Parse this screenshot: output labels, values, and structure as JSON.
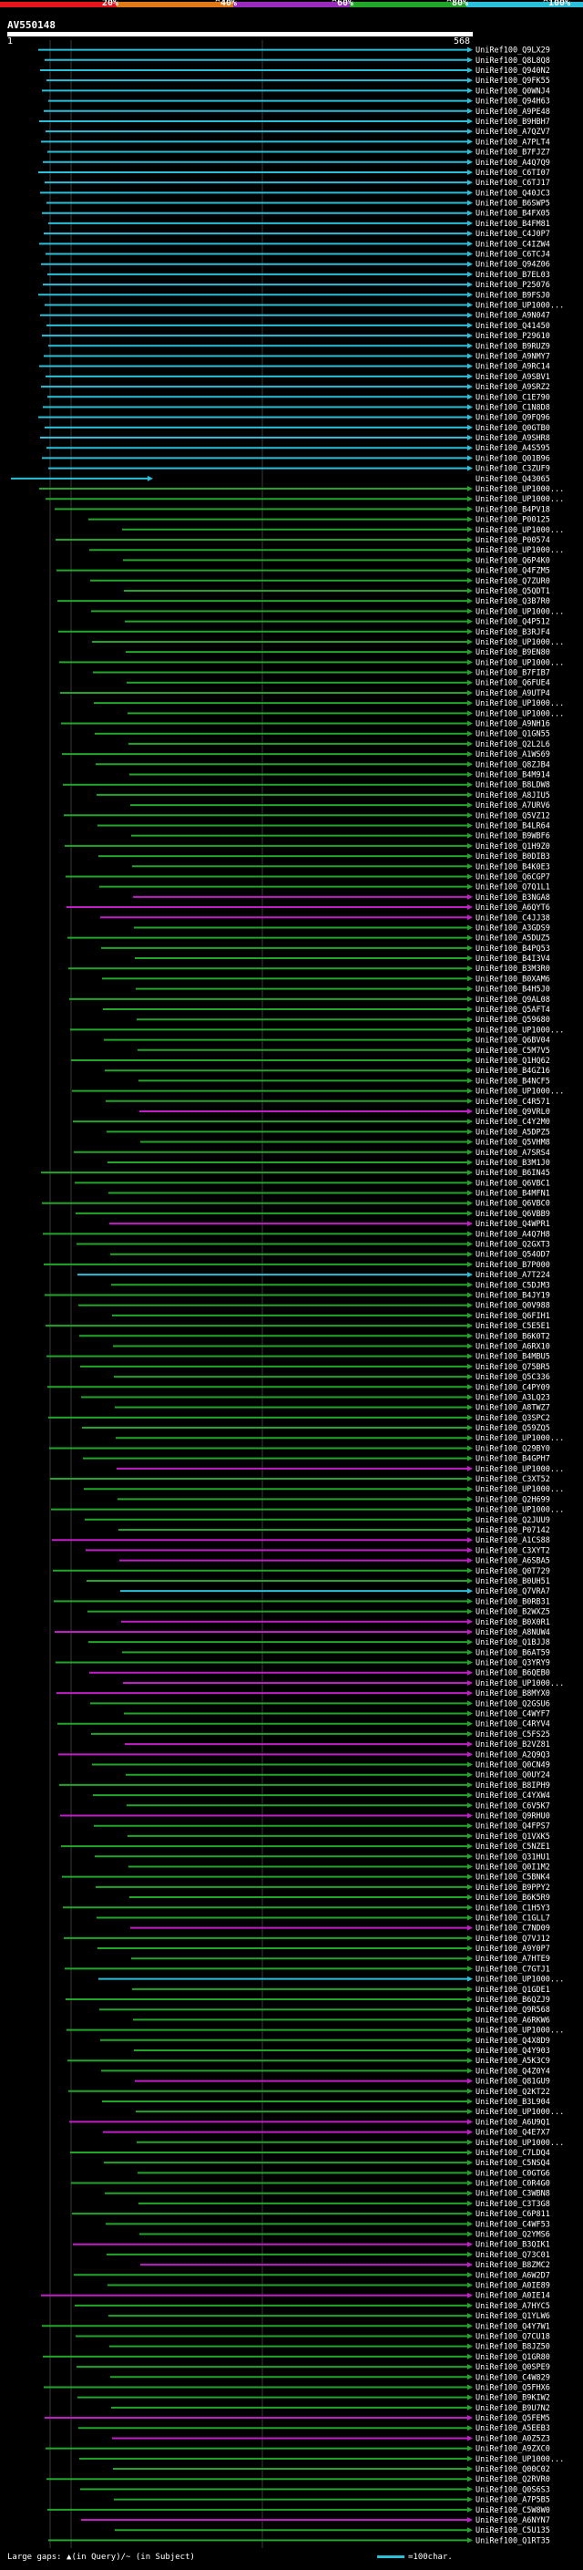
{
  "scale": {
    "labels": [
      "20%",
      "^40%",
      "^60%",
      "^80%",
      "^100%"
    ],
    "colors": [
      "#e8141b",
      "#e07a18",
      "#9b2bbd",
      "#22a62a",
      "#2bc0d9"
    ]
  },
  "query": {
    "id": "AV550148",
    "start": "1",
    "end": "568"
  },
  "footer": {
    "left_text": "Large gaps: ▲(in Query)/~ (in Subject)",
    "right_text": "=100char."
  },
  "hit_colors": {
    "cyan": "#2bc0d9",
    "green": "#22a62a",
    "magenta": "#c21ec8"
  },
  "hits": [
    {
      "label": "UniRef100_Q9LX29",
      "c": "cyan"
    },
    {
      "label": "UniRef100_Q8L8Q8",
      "c": "cyan"
    },
    {
      "label": "UniRef100_Q940N2",
      "c": "cyan"
    },
    {
      "label": "UniRef100_Q9FK55",
      "c": "cyan"
    },
    {
      "label": "UniRef100_Q0WNJ4",
      "c": "cyan"
    },
    {
      "label": "UniRef100_Q94H63",
      "c": "cyan"
    },
    {
      "label": "UniRef100_A9PE48",
      "c": "cyan"
    },
    {
      "label": "UniRef100_B9HBH7",
      "c": "cyan"
    },
    {
      "label": "UniRef100_A7QZV7",
      "c": "cyan"
    },
    {
      "label": "UniRef100_A7PLT4",
      "c": "cyan"
    },
    {
      "label": "UniRef100_B7FJZ7",
      "c": "cyan"
    },
    {
      "label": "UniRef100_A4Q7Q9",
      "c": "cyan"
    },
    {
      "label": "UniRef100_C6TI07",
      "c": "cyan"
    },
    {
      "label": "UniRef100_C6TJ17",
      "c": "cyan"
    },
    {
      "label": "UniRef100_Q40JC3",
      "c": "cyan"
    },
    {
      "label": "UniRef100_B6SWP5",
      "c": "cyan"
    },
    {
      "label": "UniRef100_B4FX05",
      "c": "cyan"
    },
    {
      "label": "UniRef100_B4FM81",
      "c": "cyan"
    },
    {
      "label": "UniRef100_C4J0P7",
      "c": "cyan"
    },
    {
      "label": "UniRef100_C4IZW4",
      "c": "cyan"
    },
    {
      "label": "UniRef100_C6TCJ4",
      "c": "cyan"
    },
    {
      "label": "UniRef100_Q94Z06",
      "c": "cyan"
    },
    {
      "label": "UniRef100_B7EL03",
      "c": "cyan"
    },
    {
      "label": "UniRef100_P25076",
      "c": "cyan"
    },
    {
      "label": "UniRef100_B9FSJ0",
      "c": "cyan"
    },
    {
      "label": "UniRef100_UP1000...",
      "c": "cyan"
    },
    {
      "label": "UniRef100_A9N047",
      "c": "cyan"
    },
    {
      "label": "UniRef100_Q41450",
      "c": "cyan"
    },
    {
      "label": "UniRef100_P29610",
      "c": "cyan"
    },
    {
      "label": "UniRef100_B9RUZ9",
      "c": "cyan"
    },
    {
      "label": "UniRef100_A9NMY7",
      "c": "cyan"
    },
    {
      "label": "UniRef100_A9RC14",
      "c": "cyan"
    },
    {
      "label": "UniRef100_A9SBV1",
      "c": "cyan"
    },
    {
      "label": "UniRef100_A9SRZ2",
      "c": "cyan"
    },
    {
      "label": "UniRef100_C1E790",
      "c": "cyan"
    },
    {
      "label": "UniRef100_C1N8D8",
      "c": "cyan"
    },
    {
      "label": "UniRef100_Q9FQ96",
      "c": "cyan"
    },
    {
      "label": "UniRef100_Q0GTB0",
      "c": "cyan"
    },
    {
      "label": "UniRef100_A9SHR8",
      "c": "cyan"
    },
    {
      "label": "UniRef100_A4S595",
      "c": "cyan"
    },
    {
      "label": "UniRef100_Q01B96",
      "c": "cyan"
    },
    {
      "label": "UniRef100_C3ZUF9",
      "c": "cyan"
    },
    {
      "label": "UniRef100_Q43065",
      "c": "cyan"
    },
    {
      "label": "UniRef100_UP1000...",
      "c": "green"
    },
    {
      "label": "UniRef100_UP1000...",
      "c": "green"
    },
    {
      "label": "UniRef100_B4PV18",
      "c": "green"
    },
    {
      "label": "UniRef100_P00125",
      "c": "green"
    },
    {
      "label": "UniRef100_UP1000...",
      "c": "green"
    },
    {
      "label": "UniRef100_P00574",
      "c": "green"
    },
    {
      "label": "UniRef100_UP1000...",
      "c": "green"
    },
    {
      "label": "UniRef100_Q6P4K0",
      "c": "green"
    },
    {
      "label": "UniRef100_Q4FZM5",
      "c": "green"
    },
    {
      "label": "UniRef100_Q7ZUR0",
      "c": "green"
    },
    {
      "label": "UniRef100_Q5QDT1",
      "c": "green"
    },
    {
      "label": "UniRef100_Q3B7R0",
      "c": "green"
    },
    {
      "label": "UniRef100_UP1000...",
      "c": "green"
    },
    {
      "label": "UniRef100_Q4P512",
      "c": "green"
    },
    {
      "label": "UniRef100_B3RJF4",
      "c": "green"
    },
    {
      "label": "UniRef100_UP1000...",
      "c": "green"
    },
    {
      "label": "UniRef100_B9EN80",
      "c": "green"
    },
    {
      "label": "UniRef100_UP1000...",
      "c": "green"
    },
    {
      "label": "UniRef100_B7FIB7",
      "c": "green"
    },
    {
      "label": "UniRef100_Q6FUE4",
      "c": "green"
    },
    {
      "label": "UniRef100_A9UTP4",
      "c": "green"
    },
    {
      "label": "UniRef100_UP1000...",
      "c": "green"
    },
    {
      "label": "UniRef100_UP1000...",
      "c": "green"
    },
    {
      "label": "UniRef100_A9NH16",
      "c": "green"
    },
    {
      "label": "UniRef100_Q1GN55",
      "c": "green"
    },
    {
      "label": "UniRef100_Q2L2L6",
      "c": "green"
    },
    {
      "label": "UniRef100_A1WS69",
      "c": "green"
    },
    {
      "label": "UniRef100_Q8ZJB4",
      "c": "green"
    },
    {
      "label": "UniRef100_B4M914",
      "c": "green"
    },
    {
      "label": "UniRef100_B8LDW8",
      "c": "green"
    },
    {
      "label": "UniRef100_A8JIU5",
      "c": "green"
    },
    {
      "label": "UniRef100_A7URV6",
      "c": "green"
    },
    {
      "label": "UniRef100_Q5VZ12",
      "c": "green"
    },
    {
      "label": "UniRef100_B4LR64",
      "c": "green"
    },
    {
      "label": "UniRef100_B9WBF6",
      "c": "green"
    },
    {
      "label": "UniRef100_Q1H9Z0",
      "c": "green"
    },
    {
      "label": "UniRef100_B0DIB3",
      "c": "green"
    },
    {
      "label": "UniRef100_B4K0E3",
      "c": "green"
    },
    {
      "label": "UniRef100_Q6CGP7",
      "c": "green"
    },
    {
      "label": "UniRef100_Q7Q1L1",
      "c": "green"
    },
    {
      "label": "UniRef100_B3NGA8",
      "c": "magenta"
    },
    {
      "label": "UniRef100_A6QYT6",
      "c": "magenta"
    },
    {
      "label": "UniRef100_C4JJ38",
      "c": "magenta"
    },
    {
      "label": "UniRef100_A3GDS9",
      "c": "green"
    },
    {
      "label": "UniRef100_A5DUZ5",
      "c": "green"
    },
    {
      "label": "UniRef100_B4PQ53",
      "c": "green"
    },
    {
      "label": "UniRef100_B4I3V4",
      "c": "green"
    },
    {
      "label": "UniRef100_B3M3R0",
      "c": "green"
    },
    {
      "label": "UniRef100_B0XAM6",
      "c": "green"
    },
    {
      "label": "UniRef100_B4H5J0",
      "c": "green"
    },
    {
      "label": "UniRef100_Q9AL08",
      "c": "green"
    },
    {
      "label": "UniRef100_Q5AFT4",
      "c": "green"
    },
    {
      "label": "UniRef100_Q59680",
      "c": "green"
    },
    {
      "label": "UniRef100_UP1000...",
      "c": "green"
    },
    {
      "label": "UniRef100_Q6BV04",
      "c": "green"
    },
    {
      "label": "UniRef100_C5M7V5",
      "c": "green"
    },
    {
      "label": "UniRef100_Q1HQ62",
      "c": "green"
    },
    {
      "label": "UniRef100_B4GZ16",
      "c": "green"
    },
    {
      "label": "UniRef100_B4NCF5",
      "c": "green"
    },
    {
      "label": "UniRef100_UP1000...",
      "c": "green"
    },
    {
      "label": "UniRef100_C4R571",
      "c": "green"
    },
    {
      "label": "UniRef100_Q9VRL0",
      "c": "magenta"
    },
    {
      "label": "UniRef100_C4Y2M0",
      "c": "green"
    },
    {
      "label": "UniRef100_A5DPZ5",
      "c": "green"
    },
    {
      "label": "UniRef100_Q5VHM8",
      "c": "green"
    },
    {
      "label": "UniRef100_A7SRS4",
      "c": "green"
    },
    {
      "label": "UniRef100_B3M1J0",
      "c": "green"
    },
    {
      "label": "UniRef100_B6IN45",
      "c": "green"
    },
    {
      "label": "UniRef100_Q6VBC1",
      "c": "green"
    },
    {
      "label": "UniRef100_B4MFN1",
      "c": "green"
    },
    {
      "label": "UniRef100_Q6VBC0",
      "c": "green"
    },
    {
      "label": "UniRef100_Q6VBB9",
      "c": "green"
    },
    {
      "label": "UniRef100_Q4WPR1",
      "c": "magenta"
    },
    {
      "label": "UniRef100_A4Q7H8",
      "c": "green"
    },
    {
      "label": "UniRef100_Q2GXT3",
      "c": "green"
    },
    {
      "label": "UniRef100_Q54OD7",
      "c": "green"
    },
    {
      "label": "UniRef100_B7P000",
      "c": "green"
    },
    {
      "label": "UniRef100_A7T224",
      "c": "cyan"
    },
    {
      "label": "UniRef100_C5DJM3",
      "c": "green"
    },
    {
      "label": "UniRef100_B4JY19",
      "c": "green"
    },
    {
      "label": "UniRef100_Q0V988",
      "c": "green"
    },
    {
      "label": "UniRef100_Q6FIH1",
      "c": "green"
    },
    {
      "label": "UniRef100_C5E5E1",
      "c": "green"
    },
    {
      "label": "UniRef100_B6K0T2",
      "c": "green"
    },
    {
      "label": "UniRef100_A6RX10",
      "c": "green"
    },
    {
      "label": "UniRef100_B4MBU5",
      "c": "green"
    },
    {
      "label": "UniRef100_Q75BR5",
      "c": "green"
    },
    {
      "label": "UniRef100_Q5C336",
      "c": "green"
    },
    {
      "label": "UniRef100_C4PY09",
      "c": "green"
    },
    {
      "label": "UniRef100_A3LQ23",
      "c": "green"
    },
    {
      "label": "UniRef100_A8TWZ7",
      "c": "green"
    },
    {
      "label": "UniRef100_Q3SPC2",
      "c": "green"
    },
    {
      "label": "UniRef100_Q59ZQ5",
      "c": "green"
    },
    {
      "label": "UniRef100_UP1000...",
      "c": "green"
    },
    {
      "label": "UniRef100_Q29BY0",
      "c": "green"
    },
    {
      "label": "UniRef100_B4GPH7",
      "c": "green"
    },
    {
      "label": "UniRef100_UP1000...",
      "c": "magenta"
    },
    {
      "label": "UniRef100_C3XT52",
      "c": "green"
    },
    {
      "label": "UniRef100_UP1000...",
      "c": "green"
    },
    {
      "label": "UniRef100_Q2H699",
      "c": "green"
    },
    {
      "label": "UniRef100_UP1000...",
      "c": "green"
    },
    {
      "label": "UniRef100_Q2JUU9",
      "c": "green"
    },
    {
      "label": "UniRef100_P07142",
      "c": "green"
    },
    {
      "label": "UniRef100_A1CS88",
      "c": "magenta"
    },
    {
      "label": "UniRef100_C3XYT2",
      "c": "magenta"
    },
    {
      "label": "UniRef100_A6SBA5",
      "c": "magenta"
    },
    {
      "label": "UniRef100_Q0T729",
      "c": "green"
    },
    {
      "label": "UniRef100_B0UH51",
      "c": "green"
    },
    {
      "label": "UniRef100_Q7VRA7",
      "c": "cyan"
    },
    {
      "label": "UniRef100_B0RB31",
      "c": "green"
    },
    {
      "label": "UniRef100_B2WXZ5",
      "c": "green"
    },
    {
      "label": "UniRef100_B0X0R1",
      "c": "magenta"
    },
    {
      "label": "UniRef100_A8NUW4",
      "c": "magenta"
    },
    {
      "label": "UniRef100_Q1BJJ8",
      "c": "green"
    },
    {
      "label": "UniRef100_B6AT59",
      "c": "green"
    },
    {
      "label": "UniRef100_Q3YRY9",
      "c": "green"
    },
    {
      "label": "UniRef100_B6QEB0",
      "c": "magenta"
    },
    {
      "label": "UniRef100_UP1000...",
      "c": "magenta"
    },
    {
      "label": "UniRef100_B8MYX0",
      "c": "magenta"
    },
    {
      "label": "UniRef100_Q2GSU6",
      "c": "green"
    },
    {
      "label": "UniRef100_C4WYF7",
      "c": "green"
    },
    {
      "label": "UniRef100_C4RYV4",
      "c": "green"
    },
    {
      "label": "UniRef100_C5FS25",
      "c": "green"
    },
    {
      "label": "UniRef100_B2VZ81",
      "c": "magenta"
    },
    {
      "label": "UniRef100_A2Q9Q3",
      "c": "magenta"
    },
    {
      "label": "UniRef100_Q0CN49",
      "c": "green"
    },
    {
      "label": "UniRef100_Q0UY24",
      "c": "green"
    },
    {
      "label": "UniRef100_B8IPH9",
      "c": "green"
    },
    {
      "label": "UniRef100_C4YXW4",
      "c": "green"
    },
    {
      "label": "UniRef100_C6V5K7",
      "c": "green"
    },
    {
      "label": "UniRef100_Q9RHU0",
      "c": "magenta"
    },
    {
      "label": "UniRef100_Q4FPS7",
      "c": "green"
    },
    {
      "label": "UniRef100_Q1VXK5",
      "c": "green"
    },
    {
      "label": "UniRef100_C5NZE1",
      "c": "green"
    },
    {
      "label": "UniRef100_Q31HU1",
      "c": "green"
    },
    {
      "label": "UniRef100_Q0I1M2",
      "c": "green"
    },
    {
      "label": "UniRef100_C5BNK4",
      "c": "green"
    },
    {
      "label": "UniRef100_B9PPY2",
      "c": "green"
    },
    {
      "label": "UniRef100_B6K5R9",
      "c": "green"
    },
    {
      "label": "UniRef100_C1H5Y3",
      "c": "green"
    },
    {
      "label": "UniRef100_C1GLL7",
      "c": "green"
    },
    {
      "label": "UniRef100_C7ND09",
      "c": "magenta"
    },
    {
      "label": "UniRef100_Q7VJ12",
      "c": "green"
    },
    {
      "label": "UniRef100_A9Y0P7",
      "c": "green"
    },
    {
      "label": "UniRef100_A7HTE9",
      "c": "green"
    },
    {
      "label": "UniRef100_C7GTJ1",
      "c": "green"
    },
    {
      "label": "UniRef100_UP1000...",
      "c": "cyan"
    },
    {
      "label": "UniRef100_Q1GDE1",
      "c": "green"
    },
    {
      "label": "UniRef100_B6QZJ9",
      "c": "green"
    },
    {
      "label": "UniRef100_Q9R568",
      "c": "green"
    },
    {
      "label": "UniRef100_A6RKW6",
      "c": "green"
    },
    {
      "label": "UniRef100_UP1000...",
      "c": "green"
    },
    {
      "label": "UniRef100_Q4X8D9",
      "c": "green"
    },
    {
      "label": "UniRef100_Q4Y903",
      "c": "green"
    },
    {
      "label": "UniRef100_A5K3C9",
      "c": "green"
    },
    {
      "label": "UniRef100_Q4Z0Y4",
      "c": "green"
    },
    {
      "label": "UniRef100_Q81GU9",
      "c": "magenta"
    },
    {
      "label": "UniRef100_Q2KT22",
      "c": "green"
    },
    {
      "label": "UniRef100_B3L904",
      "c": "green"
    },
    {
      "label": "UniRef100_UP1000...",
      "c": "green"
    },
    {
      "label": "UniRef100_A6U9Q1",
      "c": "magenta"
    },
    {
      "label": "UniRef100_Q4E7X7",
      "c": "magenta"
    },
    {
      "label": "UniRef100_UP1000...",
      "c": "green"
    },
    {
      "label": "UniRef100_C7LDQ4",
      "c": "green"
    },
    {
      "label": "UniRef100_C5NSQ4",
      "c": "green"
    },
    {
      "label": "UniRef100_C0GTG6",
      "c": "green"
    },
    {
      "label": "UniRef100_C0R4G0",
      "c": "green"
    },
    {
      "label": "UniRef100_C3WBN8",
      "c": "green"
    },
    {
      "label": "UniRef100_C3T3G8",
      "c": "green"
    },
    {
      "label": "UniRef100_C6P811",
      "c": "green"
    },
    {
      "label": "UniRef100_C4WF53",
      "c": "green"
    },
    {
      "label": "UniRef100_Q2YMS6",
      "c": "green"
    },
    {
      "label": "UniRef100_B3QIK1",
      "c": "magenta"
    },
    {
      "label": "UniRef100_Q73C01",
      "c": "green"
    },
    {
      "label": "UniRef100_B8ZMC2",
      "c": "magenta"
    },
    {
      "label": "UniRef100_A6W2D7",
      "c": "green"
    },
    {
      "label": "UniRef100_A0IE89",
      "c": "green"
    },
    {
      "label": "UniRef100_A0IE14",
      "c": "magenta"
    },
    {
      "label": "UniRef100_A7HYC5",
      "c": "green"
    },
    {
      "label": "UniRef100_Q1YLW6",
      "c": "green"
    },
    {
      "label": "UniRef100_Q4Y7W1",
      "c": "green"
    },
    {
      "label": "UniRef100_Q7CU18",
      "c": "green"
    },
    {
      "label": "UniRef100_B8JZ50",
      "c": "green"
    },
    {
      "label": "UniRef100_Q1GR80",
      "c": "green"
    },
    {
      "label": "UniRef100_Q0SPE9",
      "c": "green"
    },
    {
      "label": "UniRef100_C4W829",
      "c": "green"
    },
    {
      "label": "UniRef100_Q5FHX6",
      "c": "green"
    },
    {
      "label": "UniRef100_B9KIW2",
      "c": "green"
    },
    {
      "label": "UniRef100_B9U7N2",
      "c": "green"
    },
    {
      "label": "UniRef100_Q5FEM5",
      "c": "magenta"
    },
    {
      "label": "UniRef100_A5EEB3",
      "c": "green"
    },
    {
      "label": "UniRef100_A0Z5Z3",
      "c": "magenta"
    },
    {
      "label": "UniRef100_A9ZXC0",
      "c": "green"
    },
    {
      "label": "UniRef100_UP1000...",
      "c": "green"
    },
    {
      "label": "UniRef100_Q00C02",
      "c": "green"
    },
    {
      "label": "UniRef100_Q2RVR0",
      "c": "green"
    },
    {
      "label": "UniRef100_Q0S6S3",
      "c": "green"
    },
    {
      "label": "UniRef100_A7P5B5",
      "c": "green"
    },
    {
      "label": "UniRef100_C5W8W0",
      "c": "green"
    },
    {
      "label": "UniRef100_A6NYN7",
      "c": "magenta"
    },
    {
      "label": "UniRef100_C5U135",
      "c": "green"
    },
    {
      "label": "UniRef100_Q1RT35",
      "c": "green"
    }
  ]
}
